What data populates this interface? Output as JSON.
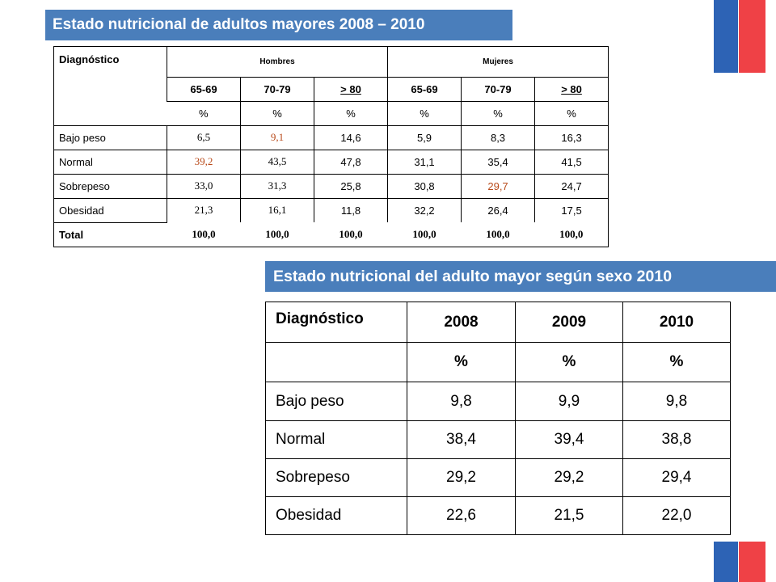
{
  "title1": "Estado nutricional de adultos mayores 2008 – 2010",
  "title2": "Estado nutricional del adulto mayor según sexo 2010",
  "table1": {
    "diag_header": "Diagnóstico",
    "group_men": "Hombres",
    "group_women": "Mujeres",
    "age_groups": [
      "65-69",
      "70-79",
      "> 80",
      "65-69",
      "70-79",
      "> 80"
    ],
    "unit": "%",
    "rows": [
      {
        "label": "Bajo peso",
        "values": [
          "6,5",
          "9,1",
          "14,6",
          "5,9",
          "8,3",
          "16,3"
        ]
      },
      {
        "label": "Normal",
        "values": [
          "39,2",
          "43,5",
          "47,8",
          "31,1",
          "35,4",
          "41,5"
        ]
      },
      {
        "label": "Sobrepeso",
        "values": [
          "33,0",
          "31,3",
          "25,8",
          "30,8",
          "29,7",
          "24,7"
        ]
      },
      {
        "label": "Obesidad",
        "values": [
          "21,3",
          "16,1",
          "11,8",
          "32,2",
          "26,4",
          "17,5"
        ]
      },
      {
        "label": "Total",
        "values": [
          "100,0",
          "100,0",
          "100,0",
          "100,0",
          "100,0",
          "100,0"
        ]
      }
    ]
  },
  "table2": {
    "diag_header": "Diagnóstico",
    "years": [
      "2008",
      "2009",
      "2010"
    ],
    "unit": "%",
    "rows": [
      {
        "label": "Bajo peso",
        "values": [
          "9,8",
          "9,9",
          "9,8"
        ]
      },
      {
        "label": "Normal",
        "values": [
          "38,4",
          "39,4",
          "38,8"
        ]
      },
      {
        "label": "Sobrepeso",
        "values": [
          "29,2",
          "29,2",
          "29,4"
        ]
      },
      {
        "label": "Obesidad",
        "values": [
          "22,6",
          "21,5",
          "22,0"
        ]
      }
    ]
  },
  "colors": {
    "title_bar": "#4a7ebb",
    "flag_blue": "#2d63b5",
    "flag_red": "#ef4146",
    "accent_digit": "#b84a1a"
  }
}
